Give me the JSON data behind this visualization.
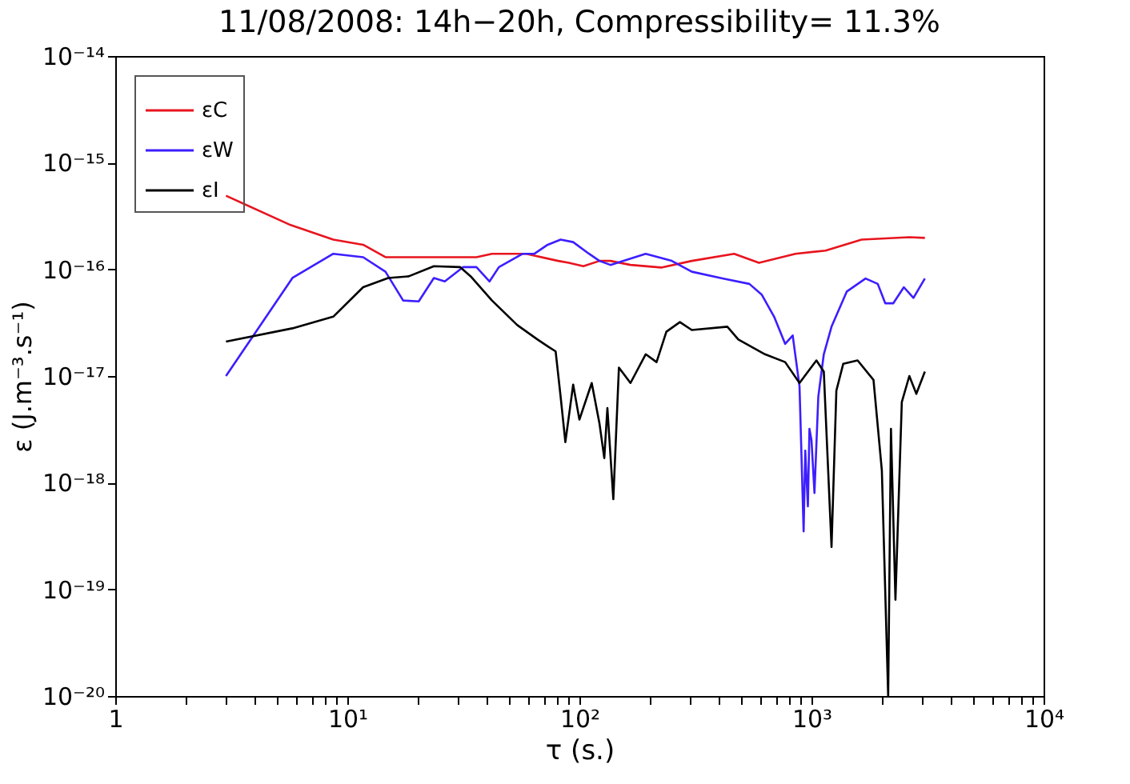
{
  "chart_data": {
    "type": "line",
    "title": "11/08/2008: 14h−20h, Compressibility= 11.3%",
    "xlabel": "τ (s.)",
    "ylabel": "ε  (J.m⁻³.s⁻¹)",
    "log": "xy",
    "grid": false,
    "legend": "top left",
    "line_style": "solid",
    "marker": "none",
    "xlim": [
      1,
      10000
    ],
    "ylim": [
      1e-20,
      1e-14
    ],
    "xticks": [
      {
        "value": 1,
        "label": "1"
      },
      {
        "value": 10,
        "label": "10¹"
      },
      {
        "value": 100,
        "label": "10²"
      },
      {
        "value": 1000,
        "label": "10³"
      },
      {
        "value": 10000,
        "label": "10⁴"
      },
      {
        "value": 2,
        "label": null
      },
      {
        "value": 3,
        "label": null
      },
      {
        "value": 4,
        "label": null
      },
      {
        "value": 5,
        "label": null
      },
      {
        "value": 6,
        "label": null
      },
      {
        "value": 7,
        "label": null
      },
      {
        "value": 8,
        "label": null
      },
      {
        "value": 9,
        "label": null
      },
      {
        "value": 20,
        "label": null
      },
      {
        "value": 30,
        "label": null
      },
      {
        "value": 40,
        "label": null
      },
      {
        "value": 50,
        "label": null
      },
      {
        "value": 60,
        "label": null
      },
      {
        "value": 70,
        "label": null
      },
      {
        "value": 80,
        "label": null
      },
      {
        "value": 90,
        "label": null
      },
      {
        "value": 200,
        "label": null
      },
      {
        "value": 300,
        "label": null
      },
      {
        "value": 400,
        "label": null
      },
      {
        "value": 500,
        "label": null
      },
      {
        "value": 600,
        "label": null
      },
      {
        "value": 700,
        "label": null
      },
      {
        "value": 800,
        "label": null
      },
      {
        "value": 900,
        "label": null
      },
      {
        "value": 2000,
        "label": null
      },
      {
        "value": 3000,
        "label": null
      },
      {
        "value": 4000,
        "label": null
      },
      {
        "value": 5000,
        "label": null
      },
      {
        "value": 6000,
        "label": null
      },
      {
        "value": 7000,
        "label": null
      },
      {
        "value": 8000,
        "label": null
      },
      {
        "value": 9000,
        "label": null
      }
    ],
    "yticks": [
      {
        "value": 1e-20,
        "label": "10⁻²⁰"
      },
      {
        "value": 1e-19,
        "label": "10⁻¹⁹"
      },
      {
        "value": 1e-18,
        "label": "10⁻¹⁸"
      },
      {
        "value": 1e-17,
        "label": "10⁻¹⁷"
      },
      {
        "value": 1e-16,
        "label": "10⁻¹⁶"
      },
      {
        "value": 1e-15,
        "label": "10⁻¹⁵"
      },
      {
        "value": 1e-14,
        "label": "10⁻¹⁴"
      }
    ],
    "series": [
      {
        "name": "εC",
        "color": "#e8141e",
        "x": [
          3,
          5.7,
          8.7,
          11.7,
          14.6,
          36,
          42,
          59,
          81,
          90,
          104,
          122,
          136,
          166,
          225,
          305,
          464,
          594,
          853,
          1150,
          1645,
          2640,
          3080
        ],
        "values": [
          4.9e-16,
          2.6e-16,
          1.9e-16,
          1.7e-16,
          1.3e-16,
          1.3e-16,
          1.4e-16,
          1.4e-16,
          1.2e-16,
          1.15e-16,
          1.07e-16,
          1.2e-16,
          1.2e-16,
          1.1e-16,
          1.04e-16,
          1.2e-16,
          1.4e-16,
          1.15e-16,
          1.4e-16,
          1.5e-16,
          1.9e-16,
          2e-16,
          1.97e-16
        ]
      },
      {
        "name": "εW",
        "color": "#3c1eff",
        "x": [
          3,
          5.8,
          8.7,
          11.7,
          14.6,
          17.4,
          20.3,
          23.6,
          26.3,
          31.6,
          36,
          41,
          45,
          57,
          64,
          73,
          83,
          94,
          110,
          122,
          136,
          193,
          250,
          305,
          417,
          540,
          610,
          690,
          770,
          830,
          888,
          925,
          940,
          965,
          980,
          1000,
          1030,
          1070,
          1130,
          1220,
          1420,
          1710,
          1930,
          2080,
          2250,
          2500,
          2750,
          3080
        ],
        "values": [
          1e-17,
          8.3e-17,
          1.4e-16,
          1.3e-16,
          9.5e-17,
          5.1e-17,
          5e-17,
          8.3e-17,
          7.7e-17,
          1.05e-16,
          1.05e-16,
          7.7e-17,
          1.05e-16,
          1.4e-16,
          1.4e-16,
          1.7e-16,
          1.9e-16,
          1.8e-16,
          1.4e-16,
          1.2e-16,
          1.1e-16,
          1.4e-16,
          1.2e-16,
          9.5e-17,
          8.2e-17,
          7.3e-17,
          5.8e-17,
          3.6e-17,
          2e-17,
          2.4e-17,
          8e-18,
          3.5e-19,
          2e-18,
          6e-19,
          3.2e-18,
          2.5e-18,
          8e-19,
          6.4e-18,
          1.6e-17,
          2.9e-17,
          6.2e-17,
          8.2e-17,
          7.3e-17,
          4.8e-17,
          4.8e-17,
          6.8e-17,
          5.4e-17,
          8.2e-17
        ]
      },
      {
        "name": "εI",
        "color": "#000000",
        "x": [
          3,
          5.8,
          8.7,
          11.7,
          15,
          18.4,
          23.6,
          30.6,
          34,
          42,
          54,
          66,
          73,
          79,
          83,
          87,
          94,
          100,
          113,
          122,
          128,
          132,
          140,
          148,
          166,
          193,
          215,
          237,
          271,
          305,
          434,
          484,
          630,
          770,
          888,
          1050,
          1130,
          1220,
          1280,
          1370,
          1580,
          1850,
          2010,
          2140,
          2200,
          2300,
          2450,
          2640,
          2830,
          3080
        ],
        "values": [
          2.1e-17,
          2.8e-17,
          3.6e-17,
          6.8e-17,
          8.3e-17,
          8.6e-17,
          1.07e-16,
          1.05e-16,
          8.6e-17,
          5.1e-17,
          3e-17,
          2.2e-17,
          1.9e-17,
          1.7e-17,
          6.4e-18,
          2.4e-18,
          8.3e-18,
          3.9e-18,
          8.6e-18,
          3.6e-18,
          1.7e-18,
          5e-18,
          7e-19,
          1.2e-17,
          8.6e-18,
          1.6e-17,
          1.35e-17,
          2.6e-17,
          3.2e-17,
          2.7e-17,
          2.9e-17,
          2.2e-17,
          1.6e-17,
          1.35e-17,
          8.6e-18,
          1.4e-17,
          1.1e-17,
          2.5e-19,
          7.3e-18,
          1.3e-17,
          1.4e-17,
          9.2e-18,
          1.3e-18,
          1e-20,
          3.2e-18,
          8e-20,
          5.7e-18,
          1e-17,
          6.8e-18,
          1.1e-17
        ]
      }
    ]
  }
}
